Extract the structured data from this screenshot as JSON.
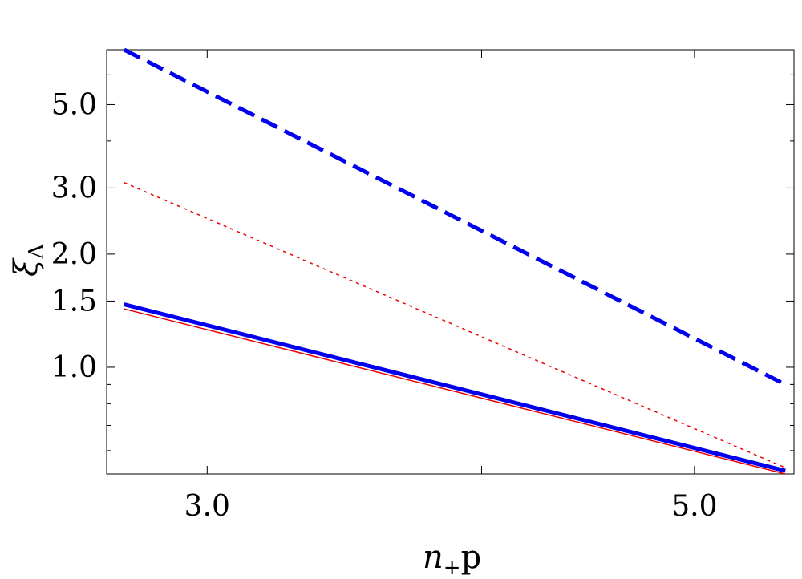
{
  "chart_data": {
    "type": "line",
    "xlabel_main": "n",
    "xlabel_sub": "+",
    "xlabel_tail": "p",
    "ylabel_main": "ξ",
    "ylabel_sub": "Λ",
    "x_scale": "log",
    "y_scale": "log",
    "xlim": [
      2.7,
      5.55
    ],
    "ylim": [
      0.52,
      7.0
    ],
    "xticks": [
      3.0,
      4.0,
      5.0
    ],
    "xtick_labels": [
      "3.0",
      "",
      "5.0"
    ],
    "yticks": [
      1.0,
      1.5,
      2.0,
      3.0,
      5.0
    ],
    "ytick_labels": [
      "1.0",
      "1.5",
      "2.0",
      "3.0",
      "5.0"
    ],
    "y_minor_ticks": [
      0.6,
      0.7,
      0.8,
      0.9,
      4.0,
      6.0
    ],
    "grid": false,
    "series": [
      {
        "color": "#0000ee",
        "style": "dashed",
        "width": "thick",
        "x": [
          2.75,
          5.5
        ],
        "y": [
          7.0,
          0.9
        ]
      },
      {
        "color": "#ee0000",
        "style": "dotted",
        "width": "thin",
        "x": [
          2.75,
          5.5
        ],
        "y": [
          3.1,
          0.54
        ]
      },
      {
        "color": "#0000ee",
        "style": "solid",
        "width": "thick",
        "x": [
          2.75,
          5.5
        ],
        "y": [
          1.47,
          0.53
        ]
      },
      {
        "color": "#ee0000",
        "style": "solid",
        "width": "thin",
        "x": [
          2.75,
          5.5
        ],
        "y": [
          1.43,
          0.52
        ]
      }
    ]
  }
}
